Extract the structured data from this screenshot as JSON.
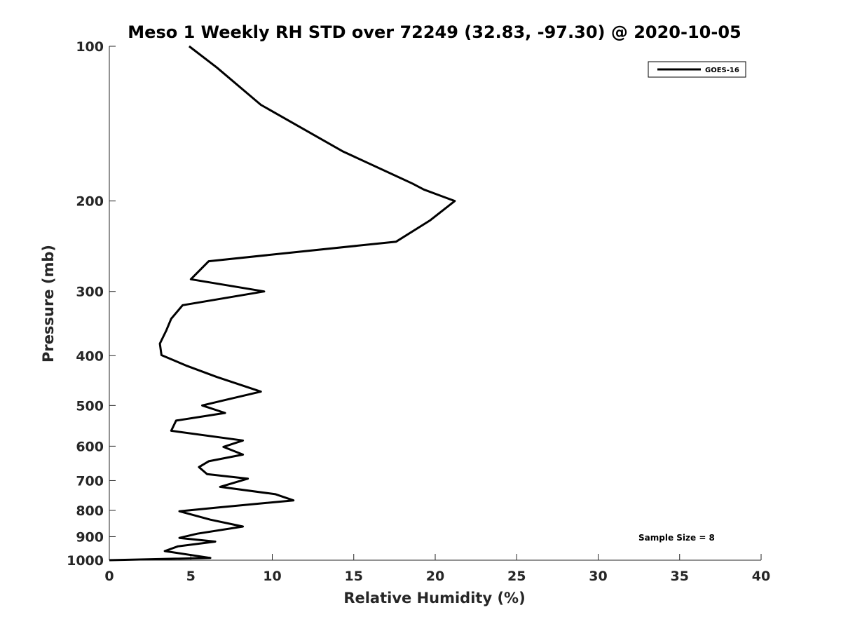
{
  "chart_data": {
    "type": "line",
    "title": "Meso 1 Weekly RH STD over 72249 (32.83, -97.30) @ 2020-10-05",
    "xlabel": "Relative Humidity (%)",
    "ylabel": "Pressure (mb)",
    "xlim": [
      0,
      40
    ],
    "ylim": [
      1000,
      100
    ],
    "y_scale": "log",
    "y_reversed": true,
    "x_ticks": [
      0,
      5,
      10,
      15,
      20,
      25,
      30,
      35,
      40
    ],
    "y_ticks": [
      100,
      200,
      300,
      400,
      500,
      600,
      700,
      800,
      900,
      1000
    ],
    "legend": "top-right",
    "annotation": "Sample Size = 8",
    "series": [
      {
        "name": "GOES-16",
        "color": "#000000",
        "x": [
          4.9,
          6.6,
          9.3,
          14.3,
          18.6,
          19.3,
          21.2,
          19.7,
          17.6,
          6.1,
          5.0,
          9.5,
          4.5,
          3.8,
          3.5,
          3.1,
          3.2,
          4.7,
          6.6,
          9.3,
          7.1,
          5.7,
          7.1,
          4.1,
          3.8,
          8.2,
          7.0,
          8.2,
          6.1,
          5.5,
          6.0,
          8.5,
          6.8,
          10.2,
          11.3,
          6.6,
          4.3,
          6.2,
          8.2,
          5.4,
          4.3,
          6.5,
          4.2,
          3.4,
          6.2,
          0.0
        ],
        "y": [
          100,
          110,
          130,
          160,
          185,
          190,
          200,
          218,
          240,
          262,
          284,
          300,
          319,
          339,
          357,
          379,
          399,
          418,
          440,
          470,
          488,
          500,
          517,
          535,
          560,
          585,
          602,
          623,
          642,
          659,
          680,
          694,
          720,
          744,
          765,
          790,
          803,
          834,
          860,
          888,
          905,
          920,
          940,
          960,
          990,
          1000
        ]
      }
    ]
  }
}
